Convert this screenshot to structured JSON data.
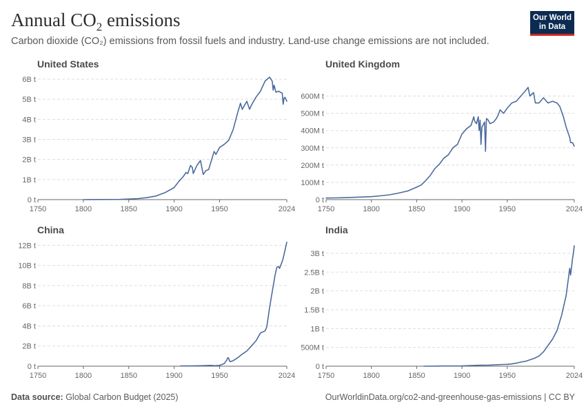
{
  "header": {
    "title_main": "Annual CO",
    "title_sub": "2",
    "title_end": " emissions",
    "subtitle": "Carbon dioxide (CO₂) emissions from fossil fuels and industry. Land-use change emissions are not included.",
    "logo_line1": "Our World",
    "logo_line2": "in Data"
  },
  "footer": {
    "source_label": "Data source:",
    "source_value": " Global Carbon Budget (2025)",
    "url": "OurWorldinData.org/co2-and-greenhouse-gas-emissions | CC BY"
  },
  "colors": {
    "line": "#4c6a9c",
    "grid": "#dddddd",
    "axis": "#666666"
  },
  "chart_data": [
    {
      "type": "line",
      "title": "United States",
      "xlim": [
        1750,
        2024
      ],
      "xticks": [
        1750,
        1800,
        1850,
        1900,
        1950,
        2024
      ],
      "ylim": [
        0,
        6
      ],
      "yticks": [
        0,
        1,
        2,
        3,
        4,
        5,
        6
      ],
      "ytick_labels": [
        "0 t",
        "1B t",
        "2B t",
        "3B t",
        "4B t",
        "5B t",
        "6B t"
      ],
      "series": [
        {
          "x": [
            1800,
            1840,
            1860,
            1870,
            1880,
            1890,
            1900,
            1905,
            1910,
            1913,
            1915,
            1918,
            1920,
            1921,
            1925,
            1929,
            1930,
            1932,
            1935,
            1938,
            1940,
            1944,
            1946,
            1950,
            1955,
            1960,
            1965,
            1970,
            1973,
            1975,
            1980,
            1983,
            1985,
            1990,
            1995,
            2000,
            2005,
            2008,
            2009,
            2010,
            2012,
            2015,
            2019,
            2020,
            2021,
            2022,
            2024
          ],
          "y": [
            0.0,
            0.01,
            0.05,
            0.1,
            0.18,
            0.35,
            0.6,
            0.9,
            1.15,
            1.35,
            1.3,
            1.7,
            1.6,
            1.3,
            1.7,
            1.95,
            1.7,
            1.25,
            1.45,
            1.5,
            1.8,
            2.4,
            2.25,
            2.6,
            2.75,
            2.95,
            3.5,
            4.35,
            4.8,
            4.5,
            4.9,
            4.5,
            4.7,
            5.1,
            5.4,
            5.9,
            6.1,
            5.9,
            5.45,
            5.7,
            5.35,
            5.4,
            5.3,
            4.75,
            5.05,
            5.1,
            4.9
          ]
        }
      ]
    },
    {
      "type": "line",
      "title": "United Kingdom",
      "xlim": [
        1750,
        2024
      ],
      "xticks": [
        1750,
        1800,
        1850,
        1900,
        1950,
        2024
      ],
      "ylim": [
        0,
        650
      ],
      "yticks": [
        0,
        100,
        200,
        300,
        400,
        500,
        600
      ],
      "ytick_labels": [
        "0 t",
        "100M t",
        "200M t",
        "300M t",
        "400M t",
        "500M t",
        "600M t"
      ],
      "series": [
        {
          "x": [
            1750,
            1760,
            1770,
            1780,
            1790,
            1800,
            1810,
            1820,
            1830,
            1840,
            1850,
            1855,
            1860,
            1865,
            1870,
            1875,
            1880,
            1885,
            1890,
            1895,
            1900,
            1905,
            1910,
            1913,
            1914,
            1916,
            1918,
            1919,
            1920,
            1921,
            1922,
            1925,
            1926,
            1927,
            1929,
            1931,
            1935,
            1938,
            1940,
            1942,
            1944,
            1946,
            1950,
            1955,
            1960,
            1965,
            1970,
            1973,
            1975,
            1979,
            1981,
            1985,
            1990,
            1995,
            2000,
            2005,
            2008,
            2010,
            2012,
            2015,
            2019,
            2020,
            2022,
            2024
          ],
          "y": [
            9,
            10,
            11,
            13,
            15,
            17,
            22,
            28,
            38,
            50,
            72,
            85,
            110,
            140,
            180,
            205,
            240,
            260,
            300,
            320,
            380,
            410,
            430,
            480,
            455,
            440,
            480,
            400,
            460,
            320,
            420,
            450,
            280,
            470,
            460,
            440,
            450,
            470,
            490,
            520,
            510,
            500,
            530,
            560,
            570,
            600,
            630,
            650,
            600,
            620,
            560,
            560,
            590,
            560,
            570,
            560,
            540,
            510,
            480,
            420,
            360,
            330,
            330,
            310
          ]
        }
      ]
    },
    {
      "type": "line",
      "title": "China",
      "xlim": [
        1750,
        2024
      ],
      "xticks": [
        1750,
        1800,
        1850,
        1900,
        1950,
        2024
      ],
      "ylim": [
        0,
        12.5
      ],
      "yticks": [
        0,
        2,
        4,
        6,
        8,
        10,
        12
      ],
      "ytick_labels": [
        "0 t",
        "2B t",
        "4B t",
        "6B t",
        "8B t",
        "10B t",
        "12B t"
      ],
      "series": [
        {
          "x": [
            1907,
            1920,
            1930,
            1940,
            1945,
            1950,
            1955,
            1958,
            1959,
            1960,
            1961,
            1962,
            1965,
            1970,
            1975,
            1980,
            1985,
            1990,
            1995,
            2000,
            2002,
            2005,
            2008,
            2011,
            2013,
            2015,
            2016,
            2019,
            2020,
            2022,
            2024
          ],
          "y": [
            0.02,
            0.03,
            0.05,
            0.08,
            0.05,
            0.08,
            0.25,
            0.6,
            0.85,
            0.8,
            0.5,
            0.45,
            0.55,
            0.85,
            1.2,
            1.5,
            2.0,
            2.5,
            3.3,
            3.5,
            3.9,
            5.8,
            7.4,
            9.0,
            9.8,
            9.9,
            9.7,
            10.4,
            10.7,
            11.5,
            12.3
          ]
        }
      ]
    },
    {
      "type": "line",
      "title": "India",
      "xlim": [
        1750,
        2024
      ],
      "xticks": [
        1750,
        1800,
        1850,
        1900,
        1950,
        2024
      ],
      "ylim": [
        0,
        3.2
      ],
      "yticks": [
        0,
        0.5,
        1,
        1.5,
        2,
        2.5,
        3
      ],
      "ytick_labels": [
        "0 t",
        "500M t",
        "1B t",
        "1.5B t",
        "2B t",
        "2.5B t",
        "3B t"
      ],
      "series": [
        {
          "x": [
            1858,
            1880,
            1900,
            1920,
            1930,
            1940,
            1945,
            1950,
            1955,
            1960,
            1965,
            1970,
            1975,
            1980,
            1985,
            1990,
            1995,
            2000,
            2005,
            2010,
            2015,
            2019,
            2020,
            2021,
            2022,
            2023,
            2024
          ],
          "y": [
            0.0,
            0.005,
            0.01,
            0.025,
            0.03,
            0.04,
            0.045,
            0.05,
            0.06,
            0.08,
            0.11,
            0.13,
            0.17,
            0.21,
            0.27,
            0.38,
            0.55,
            0.72,
            0.95,
            1.35,
            1.88,
            2.6,
            2.42,
            2.65,
            2.85,
            3.0,
            3.2
          ]
        }
      ]
    }
  ]
}
